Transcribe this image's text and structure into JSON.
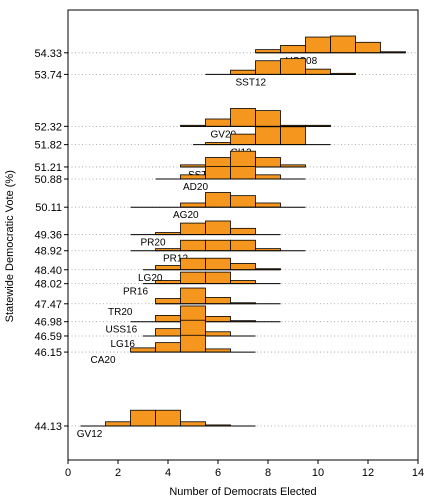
{
  "chart_data": {
    "type": "histogram-ridgeline",
    "xlabel": "Number of Democrats Elected",
    "ylabel": "Statewide Democratic Vote (%)",
    "xlim": [
      0,
      14
    ],
    "xticks": [
      0,
      2,
      4,
      6,
      8,
      10,
      12,
      14
    ],
    "ylim": [
      43.2,
      55.5
    ],
    "grid": "horizontal dotted at each series baseline",
    "fill_color": "#f5961e",
    "edge_color": "#000000",
    "series": [
      {
        "name": "USS08",
        "vote": 54.33,
        "vote_label": "54.33",
        "range": [
          7.5,
          13.5
        ],
        "label_x": 8.7,
        "bins": [
          {
            "x": 7.5,
            "h": 0.15
          },
          {
            "x": 8.5,
            "h": 0.35
          },
          {
            "x": 9.5,
            "h": 0.75
          },
          {
            "x": 10.5,
            "h": 0.8
          },
          {
            "x": 11.5,
            "h": 0.5
          },
          {
            "x": 12.5,
            "h": 0.05
          }
        ]
      },
      {
        "name": "SST12",
        "vote": 53.74,
        "vote_label": "53.74",
        "range": [
          5.5,
          11.5
        ],
        "label_x": 6.7,
        "bins": [
          {
            "x": 6.5,
            "h": 0.2
          },
          {
            "x": 7.5,
            "h": 0.65
          },
          {
            "x": 8.5,
            "h": 0.75
          },
          {
            "x": 9.5,
            "h": 0.25
          },
          {
            "x": 10.5,
            "h": 0.05
          }
        ]
      },
      {
        "name": "GV20",
        "vote": 52.32,
        "vote_label": "52.32",
        "range": [
          4.5,
          10.5
        ],
        "label_x": 5.7,
        "bins": [
          {
            "x": 4.5,
            "h": 0.05
          },
          {
            "x": 5.5,
            "h": 0.35
          },
          {
            "x": 6.5,
            "h": 0.85
          },
          {
            "x": 7.5,
            "h": 0.75
          },
          {
            "x": 8.5,
            "h": 0.05
          },
          {
            "x": 9.5,
            "h": 0.05
          }
        ]
      },
      {
        "name": "CI12",
        "vote": 51.82,
        "vote_label": "51.82",
        "range": [
          5.0,
          10.5
        ],
        "label_x": 6.5,
        "bins": [
          {
            "x": 5.5,
            "h": 0.1
          },
          {
            "x": 6.5,
            "h": 0.5
          },
          {
            "x": 7.5,
            "h": 0.85
          },
          {
            "x": 8.5,
            "h": 0.85
          }
        ]
      },
      {
        "name": "SST20",
        "vote": 51.21,
        "vote_label": "51.21",
        "range": [
          4.5,
          9.5
        ],
        "label_x": 4.8,
        "bins": [
          {
            "x": 4.5,
            "h": 0.1
          },
          {
            "x": 5.5,
            "h": 0.45
          },
          {
            "x": 6.5,
            "h": 0.75
          },
          {
            "x": 7.5,
            "h": 0.45
          },
          {
            "x": 8.5,
            "h": 0.1
          }
        ]
      },
      {
        "name": "AD20",
        "vote": 50.88,
        "vote_label": "50.88",
        "range": [
          3.5,
          9.5
        ],
        "label_x": 4.6,
        "bins": [
          {
            "x": 4.5,
            "h": 0.2
          },
          {
            "x": 5.5,
            "h": 0.6
          },
          {
            "x": 6.5,
            "h": 0.6
          },
          {
            "x": 7.5,
            "h": 0.2
          }
        ]
      },
      {
        "name": "AG20",
        "vote": 50.11,
        "vote_label": "50.11",
        "range": [
          2.5,
          9.5
        ],
        "label_x": 4.2,
        "bins": [
          {
            "x": 4.5,
            "h": 0.2
          },
          {
            "x": 5.5,
            "h": 0.7
          },
          {
            "x": 6.5,
            "h": 0.55
          },
          {
            "x": 7.5,
            "h": 0.2
          }
        ]
      },
      {
        "name": "PR20",
        "vote": 49.36,
        "vote_label": "49.36",
        "range": [
          2.5,
          8.5
        ],
        "label_x": 2.9,
        "bins": [
          {
            "x": 3.5,
            "h": 0.1
          },
          {
            "x": 4.5,
            "h": 0.55
          },
          {
            "x": 5.5,
            "h": 0.65
          },
          {
            "x": 6.5,
            "h": 0.3
          }
        ]
      },
      {
        "name": "PR12",
        "vote": 48.92,
        "vote_label": "48.92",
        "range": [
          2.5,
          9.5
        ],
        "label_x": 3.8,
        "bins": [
          {
            "x": 3.5,
            "h": 0.1
          },
          {
            "x": 4.5,
            "h": 0.5
          },
          {
            "x": 5.5,
            "h": 0.5
          },
          {
            "x": 6.5,
            "h": 0.5
          },
          {
            "x": 7.5,
            "h": 0.1
          }
        ]
      },
      {
        "name": "LG20",
        "vote": 48.4,
        "vote_label": "48.40",
        "range": [
          3.0,
          8.5
        ],
        "label_x": 2.8,
        "bins": [
          {
            "x": 3.5,
            "h": 0.2
          },
          {
            "x": 4.5,
            "h": 0.55
          },
          {
            "x": 5.5,
            "h": 0.55
          },
          {
            "x": 6.5,
            "h": 0.3
          },
          {
            "x": 7.5,
            "h": 0.05
          }
        ]
      },
      {
        "name": "PR16",
        "vote": 48.02,
        "vote_label": "48.02",
        "range": [
          3.0,
          8.5
        ],
        "label_x": 2.2,
        "bins": [
          {
            "x": 3.5,
            "h": 0.15
          },
          {
            "x": 4.5,
            "h": 0.55
          },
          {
            "x": 5.5,
            "h": 0.55
          },
          {
            "x": 6.5,
            "h": 0.15
          }
        ]
      },
      {
        "name": "TR20",
        "vote": 47.47,
        "vote_label": "47.47",
        "range": [
          3.5,
          8.5
        ],
        "label_x": 1.6,
        "bins": [
          {
            "x": 3.5,
            "h": 0.25
          },
          {
            "x": 4.5,
            "h": 0.75
          },
          {
            "x": 5.5,
            "h": 0.3
          },
          {
            "x": 6.5,
            "h": 0.05
          }
        ]
      },
      {
        "name": "USS16",
        "vote": 46.98,
        "vote_label": "46.98",
        "range": [
          2.5,
          8.5
        ],
        "label_x": 1.5,
        "bins": [
          {
            "x": 3.5,
            "h": 0.3
          },
          {
            "x": 4.5,
            "h": 0.75
          },
          {
            "x": 5.5,
            "h": 0.25
          },
          {
            "x": 6.5,
            "h": 0.05
          }
        ]
      },
      {
        "name": "LG16",
        "vote": 46.59,
        "vote_label": "46.59",
        "range": [
          3.0,
          7.5
        ],
        "label_x": 1.7,
        "bins": [
          {
            "x": 3.5,
            "h": 0.35
          },
          {
            "x": 4.5,
            "h": 0.75
          },
          {
            "x": 5.5,
            "h": 0.2
          }
        ]
      },
      {
        "name": "CA20",
        "vote": 46.15,
        "vote_label": "46.15",
        "range": [
          2.5,
          7.5
        ],
        "label_x": 0.9,
        "bins": [
          {
            "x": 2.5,
            "h": 0.2
          },
          {
            "x": 3.5,
            "h": 0.45
          },
          {
            "x": 4.5,
            "h": 0.8
          },
          {
            "x": 5.5,
            "h": 0.15
          }
        ]
      },
      {
        "name": "GV12",
        "vote": 44.13,
        "vote_label": "44.13",
        "range": [
          0.5,
          7.5
        ],
        "label_x": 0.35,
        "bins": [
          {
            "x": 1.5,
            "h": 0.2
          },
          {
            "x": 2.5,
            "h": 0.75
          },
          {
            "x": 3.5,
            "h": 0.75
          },
          {
            "x": 4.5,
            "h": 0.2
          },
          {
            "x": 5.5,
            "h": 0.05
          }
        ]
      }
    ]
  }
}
